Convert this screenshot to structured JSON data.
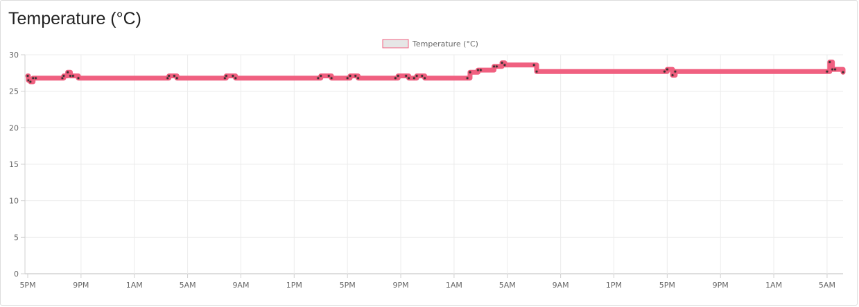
{
  "page": {
    "title": "Temperature (°C)"
  },
  "chart_data": {
    "type": "line",
    "title": "Temperature (°C)",
    "xlabel": "",
    "ylabel": "",
    "ylim": [
      0,
      30
    ],
    "yticks": [
      "0",
      "5",
      "10",
      "15",
      "20",
      "25",
      "30"
    ],
    "xticks": [
      "5PM",
      "9PM",
      "1AM",
      "5AM",
      "9AM",
      "1PM",
      "5PM",
      "9PM",
      "1AM",
      "5AM",
      "9AM",
      "1PM",
      "5PM",
      "9PM",
      "1AM",
      "5AM"
    ],
    "x_hours_range": [
      0,
      61.2
    ],
    "grid": true,
    "legend": {
      "position": "top-center"
    },
    "colors": {
      "line": "#f06080",
      "point": "#d9536f",
      "legend_fill": "#e6e6e6",
      "legend_border": "#f06080"
    },
    "series": [
      {
        "name": "Temperature (°C)",
        "x": [
          0,
          0.05,
          0.2,
          0.4,
          0.6,
          2.6,
          2.7,
          3.0,
          3.2,
          3.4,
          3.8,
          10.5,
          10.6,
          11.0,
          11.2,
          14.8,
          14.9,
          15.4,
          15.6,
          21.8,
          22.0,
          22.6,
          22.8,
          24.0,
          24.2,
          24.6,
          24.8,
          27.6,
          27.8,
          28.4,
          28.6,
          29.0,
          29.2,
          29.6,
          29.8,
          33.0,
          33.2,
          33.8,
          34.0,
          35.0,
          35.2,
          35.6,
          35.8,
          38.0,
          38.2,
          47.8,
          48.0,
          48.4,
          48.6,
          60.0,
          60.2,
          60.4,
          60.6,
          61.2
        ],
        "y": [
          27.1,
          26.5,
          26.3,
          26.8,
          26.8,
          26.8,
          27.1,
          27.6,
          27.1,
          27.1,
          26.8,
          26.8,
          27.1,
          27.1,
          26.8,
          26.8,
          27.1,
          27.1,
          26.8,
          26.8,
          27.1,
          27.1,
          26.8,
          26.8,
          27.1,
          27.1,
          26.8,
          26.8,
          27.1,
          27.1,
          26.8,
          26.8,
          27.1,
          27.1,
          26.8,
          26.8,
          27.6,
          27.9,
          27.9,
          28.4,
          28.4,
          28.9,
          28.6,
          28.6,
          27.7,
          27.7,
          28.0,
          27.2,
          27.7,
          27.7,
          29.0,
          28.0,
          28.0,
          27.6
        ]
      }
    ]
  }
}
